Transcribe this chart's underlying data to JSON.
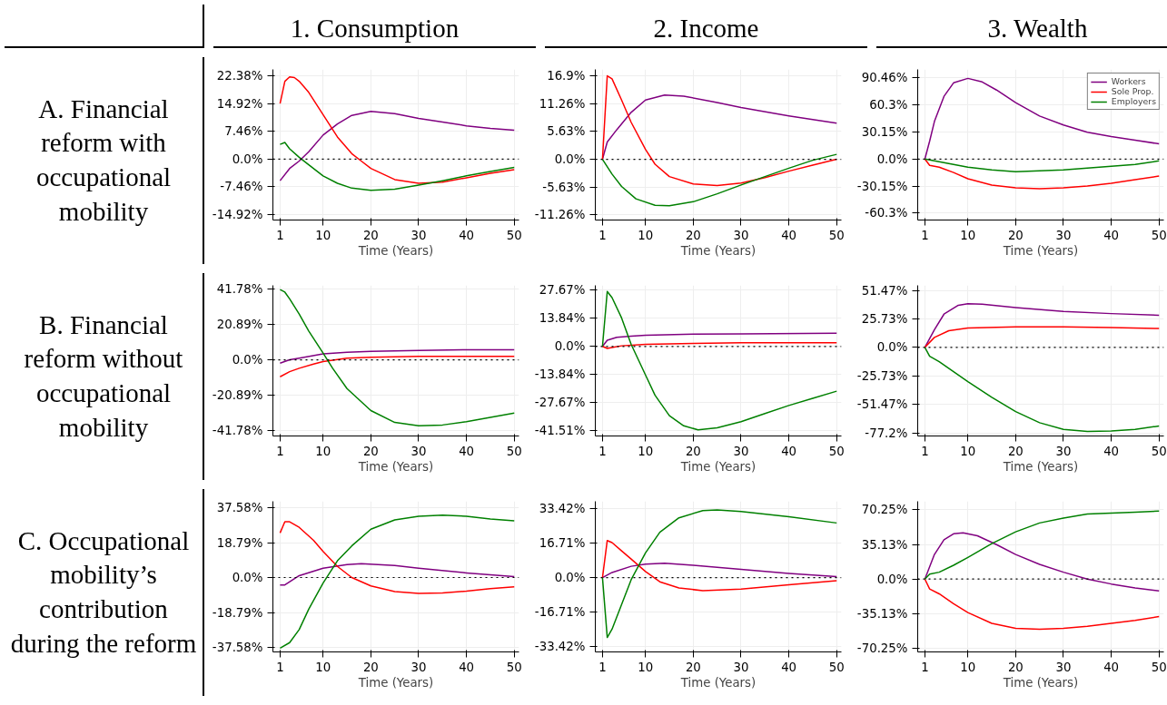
{
  "chart_data": [
    {
      "type": "line",
      "title": "1. Consumption",
      "ylabel": "A. Financial reform with occupational mobility",
      "xlabel": "Time (Years)",
      "xlim": [
        -0.5,
        51
      ],
      "xticks": [
        1,
        10,
        20,
        30,
        40,
        50
      ],
      "ylim": [
        -16.4,
        24.2
      ],
      "yticks": [
        {
          "value": -14.92,
          "label": "-14.92%"
        },
        {
          "value": -7.46,
          "label": "-7.46%"
        },
        {
          "value": 0,
          "label": "0.0%"
        },
        {
          "value": 7.46,
          "label": "7.46%"
        },
        {
          "value": 14.92,
          "label": "14.92%"
        },
        {
          "value": 22.38,
          "label": "22.38%"
        }
      ],
      "grid": true,
      "ref_lines": [
        {
          "axis": "y",
          "value": 0,
          "color": "#000000",
          "line_style": "dotted"
        }
      ],
      "series": [
        {
          "color": "#800080",
          "x": [
            1,
            3,
            5,
            7,
            10,
            13,
            16,
            20,
            25,
            30,
            35,
            40,
            45,
            50
          ],
          "values": [
            -5.8,
            -2.5,
            -0.5,
            2,
            6.5,
            9.5,
            11.8,
            12.9,
            12.3,
            11,
            10,
            9,
            8.3,
            7.8
          ]
        },
        {
          "color": "#ff0000",
          "x": [
            1,
            2,
            3,
            4,
            5,
            7,
            10,
            13,
            16,
            18,
            20,
            25,
            30,
            35,
            40,
            45,
            50
          ],
          "values": [
            15,
            21,
            22.2,
            22,
            21,
            18,
            12,
            6,
            1.5,
            -0.5,
            -2.5,
            -5.5,
            -6.5,
            -6.2,
            -5,
            -3.8,
            -2.8
          ]
        },
        {
          "color": "#008000",
          "x": [
            1,
            2,
            3,
            5,
            7,
            10,
            13,
            16,
            20,
            25,
            30,
            35,
            40,
            45,
            50
          ],
          "values": [
            4,
            4.5,
            2.8,
            0.5,
            -1.5,
            -4.5,
            -6.5,
            -7.8,
            -8.4,
            -8.1,
            -7,
            -5.8,
            -4.5,
            -3.3,
            -2.2
          ]
        }
      ]
    },
    {
      "type": "line",
      "title": "2. Income",
      "xlabel": "Time (Years)",
      "xlim": [
        -0.5,
        51
      ],
      "xticks": [
        1,
        10,
        20,
        30,
        40,
        50
      ],
      "ylim": [
        -12.3,
        18.2
      ],
      "yticks": [
        {
          "value": -11.26,
          "label": "-11.26%"
        },
        {
          "value": -5.63,
          "label": "-5.63%"
        },
        {
          "value": 0,
          "label": "0.0%"
        },
        {
          "value": 5.63,
          "label": "5.63%"
        },
        {
          "value": 11.26,
          "label": "11.26%"
        },
        {
          "value": 16.9,
          "label": "16.9%"
        }
      ],
      "grid": true,
      "ref_lines": [
        {
          "axis": "y",
          "value": 0,
          "color": "#000000",
          "line_style": "dotted"
        }
      ],
      "series": [
        {
          "color": "#800080",
          "x": [
            1,
            2,
            4,
            7,
            10,
            14,
            18,
            25,
            30,
            40,
            50
          ],
          "values": [
            0,
            3.5,
            6,
            9.5,
            12,
            13,
            12.8,
            11.5,
            10.5,
            8.8,
            7.3
          ]
        },
        {
          "color": "#ff0000",
          "x": [
            1,
            2,
            3,
            5,
            7,
            10,
            12,
            15,
            20,
            25,
            30,
            35,
            40,
            45,
            50
          ],
          "values": [
            0,
            16.9,
            16.3,
            12,
            7.5,
            2,
            -1,
            -3.5,
            -5,
            -5.3,
            -4.8,
            -3.7,
            -2.4,
            -1.2,
            0
          ]
        },
        {
          "color": "#008000",
          "x": [
            1,
            3,
            5,
            8,
            12,
            15,
            20,
            25,
            30,
            35,
            40,
            45,
            50
          ],
          "values": [
            0,
            -3,
            -5.5,
            -8,
            -9.3,
            -9.4,
            -8.6,
            -7,
            -5.2,
            -3.5,
            -1.8,
            -0.2,
            1
          ]
        }
      ]
    },
    {
      "type": "line",
      "title": "3. Wealth",
      "xlabel": "Time (Years)",
      "xlim": [
        -0.5,
        51
      ],
      "xticks": [
        1,
        10,
        20,
        30,
        40,
        50
      ],
      "ylim": [
        -68,
        100
      ],
      "yticks": [
        {
          "value": -60.3,
          "label": "-60.3%"
        },
        {
          "value": -30.15,
          "label": "-30.15%"
        },
        {
          "value": 0,
          "label": "0.0%"
        },
        {
          "value": 30.15,
          "label": "30.15%"
        },
        {
          "value": 60.3,
          "label": "60.3%"
        },
        {
          "value": 90.46,
          "label": "90.46%"
        }
      ],
      "grid": true,
      "legend": "top right",
      "ref_lines": [
        {
          "axis": "y",
          "value": 0,
          "color": "#000000",
          "line_style": "dotted"
        }
      ],
      "series": [
        {
          "name": "Workers",
          "color": "#800080",
          "x": [
            1,
            2,
            3,
            5,
            7,
            10,
            13,
            16,
            20,
            25,
            30,
            35,
            40,
            45,
            50
          ],
          "values": [
            0,
            20,
            42,
            70,
            85,
            90,
            86,
            77,
            63,
            48,
            38,
            30,
            25,
            21,
            17
          ]
        },
        {
          "name": "Sole Prop.",
          "color": "#ff0000",
          "x": [
            1,
            2,
            4,
            7,
            10,
            15,
            20,
            25,
            30,
            35,
            40,
            45,
            50
          ],
          "values": [
            0,
            -7,
            -9,
            -15,
            -22,
            -29,
            -32,
            -33,
            -32,
            -30,
            -27,
            -23,
            -19
          ]
        },
        {
          "name": "Employers",
          "color": "#008000",
          "x": [
            1,
            5,
            10,
            15,
            20,
            25,
            30,
            35,
            40,
            45,
            50
          ],
          "values": [
            0,
            -4,
            -9,
            -12,
            -14,
            -13,
            -12,
            -10,
            -8,
            -6,
            -2
          ]
        }
      ]
    },
    {
      "type": "line",
      "ylabel": "B. Financial reform without occupational mobility",
      "xlabel": "Time (Years)",
      "xlim": [
        -0.5,
        51
      ],
      "xticks": [
        1,
        10,
        20,
        30,
        40,
        50
      ],
      "ylim": [
        -45,
        44
      ],
      "yticks": [
        {
          "value": -41.78,
          "label": "-41.78%"
        },
        {
          "value": -20.89,
          "label": "-20.89%"
        },
        {
          "value": 0,
          "label": "0.0%"
        },
        {
          "value": 20.89,
          "label": "20.89%"
        },
        {
          "value": 41.78,
          "label": "41.78%"
        }
      ],
      "grid": true,
      "ref_lines": [
        {
          "axis": "y",
          "value": 0,
          "color": "#000000",
          "line_style": "dotted"
        }
      ],
      "series": [
        {
          "color": "#800080",
          "x": [
            1,
            3,
            5,
            10,
            15,
            20,
            30,
            40,
            50
          ],
          "values": [
            -2,
            0,
            1,
            3.5,
            4.5,
            5,
            5.5,
            6,
            6
          ]
        },
        {
          "color": "#ff0000",
          "x": [
            1,
            3,
            5,
            8,
            10,
            15,
            20,
            30,
            40,
            50
          ],
          "values": [
            -10,
            -7,
            -5,
            -2.5,
            -1,
            1,
            1.5,
            2,
            2,
            2
          ]
        },
        {
          "color": "#008000",
          "x": [
            1,
            2,
            3,
            5,
            7,
            10,
            12,
            15,
            20,
            25,
            30,
            35,
            40,
            45,
            50
          ],
          "values": [
            41.5,
            40,
            36,
            27,
            17,
            4,
            -5,
            -17,
            -30,
            -37,
            -39,
            -38.5,
            -36.5,
            -34,
            -31.5
          ]
        }
      ]
    },
    {
      "type": "line",
      "xlabel": "Time (Years)",
      "xlim": [
        -0.5,
        51
      ],
      "xticks": [
        1,
        10,
        20,
        30,
        40,
        50
      ],
      "ylim": [
        -44,
        30
      ],
      "yticks": [
        {
          "value": -41.51,
          "label": "-41.51%"
        },
        {
          "value": -27.67,
          "label": "-27.67%"
        },
        {
          "value": -13.84,
          "label": "-13.84%"
        },
        {
          "value": 0,
          "label": "0.0%"
        },
        {
          "value": 13.84,
          "label": "13.84%"
        },
        {
          "value": 27.67,
          "label": "27.67%"
        }
      ],
      "grid": true,
      "ref_lines": [
        {
          "axis": "y",
          "value": 0,
          "color": "#000000",
          "line_style": "dotted"
        }
      ],
      "series": [
        {
          "color": "#800080",
          "x": [
            1,
            2,
            4,
            7,
            10,
            20,
            30,
            50
          ],
          "values": [
            0,
            3,
            4.5,
            5,
            5.5,
            6,
            6.2,
            6.5
          ]
        },
        {
          "color": "#ff0000",
          "x": [
            1,
            2,
            3,
            5,
            10,
            20,
            30,
            50
          ],
          "values": [
            0,
            -1,
            -0.5,
            0.3,
            1,
            1.5,
            1.8,
            1.8
          ]
        },
        {
          "color": "#008000",
          "x": [
            1,
            2,
            3,
            5,
            7,
            10,
            12,
            15,
            18,
            21,
            25,
            30,
            35,
            40,
            45,
            50
          ],
          "values": [
            0,
            27,
            24,
            14,
            1,
            -14,
            -24,
            -34,
            -39,
            -41,
            -40,
            -37,
            -33,
            -29,
            -25.5,
            -22
          ]
        }
      ]
    },
    {
      "type": "line",
      "xlabel": "Time (Years)",
      "xlim": [
        -0.5,
        51
      ],
      "xticks": [
        1,
        10,
        20,
        30,
        40,
        50
      ],
      "ylim": [
        -80,
        56
      ],
      "yticks": [
        {
          "value": -77.2,
          "label": "-77.2%"
        },
        {
          "value": -51.47,
          "label": "-51.47%"
        },
        {
          "value": -25.73,
          "label": "-25.73%"
        },
        {
          "value": 0,
          "label": "0.0%"
        },
        {
          "value": 25.73,
          "label": "25.73%"
        },
        {
          "value": 51.47,
          "label": "51.47%"
        }
      ],
      "grid": true,
      "ref_lines": [
        {
          "axis": "y",
          "value": 0,
          "color": "#000000",
          "line_style": "dotted"
        }
      ],
      "series": [
        {
          "color": "#800080",
          "x": [
            1,
            3,
            5,
            8,
            10,
            13,
            20,
            30,
            40,
            50
          ],
          "values": [
            0,
            16,
            30,
            38,
            39.5,
            39,
            36,
            32.5,
            30.5,
            29
          ]
        },
        {
          "color": "#ff0000",
          "x": [
            1,
            3,
            6,
            10,
            20,
            30,
            40,
            50
          ],
          "values": [
            0,
            9,
            15,
            17.5,
            18.5,
            18.5,
            18,
            17
          ]
        },
        {
          "color": "#008000",
          "x": [
            1,
            2,
            4,
            7,
            10,
            15,
            20,
            25,
            30,
            35,
            40,
            45,
            50
          ],
          "values": [
            0,
            -8,
            -13,
            -22,
            -31,
            -45,
            -58,
            -68,
            -74,
            -76,
            -75.5,
            -74,
            -71
          ]
        }
      ]
    },
    {
      "type": "line",
      "ylabel": "C. Occupational mobility’s contribution during the reform",
      "xlabel": "Time (Years)",
      "xlim": [
        -0.5,
        51
      ],
      "xticks": [
        1,
        10,
        20,
        30,
        40,
        50
      ],
      "ylim": [
        -40,
        41
      ],
      "yticks": [
        {
          "value": -37.58,
          "label": "-37.58%"
        },
        {
          "value": -18.79,
          "label": "-18.79%"
        },
        {
          "value": 0,
          "label": "0.0%"
        },
        {
          "value": 18.79,
          "label": "18.79%"
        },
        {
          "value": 37.58,
          "label": "37.58%"
        }
      ],
      "grid": true,
      "ref_lines": [
        {
          "axis": "y",
          "value": 0,
          "color": "#000000",
          "line_style": "dotted"
        }
      ],
      "series": [
        {
          "color": "#800080",
          "x": [
            1,
            2,
            5,
            10,
            15,
            18,
            25,
            30,
            40,
            50
          ],
          "values": [
            -4,
            -4,
            1,
            5,
            7,
            7.5,
            6.5,
            5,
            2.5,
            0.5
          ]
        },
        {
          "color": "#ff0000",
          "x": [
            1,
            2,
            3,
            5,
            8,
            10,
            13,
            16,
            20,
            25,
            30,
            35,
            40,
            45,
            50
          ],
          "values": [
            24,
            30,
            30,
            27,
            20,
            14,
            6,
            0,
            -4.5,
            -7.5,
            -8.5,
            -8.3,
            -7.3,
            -6,
            -5
          ]
        },
        {
          "color": "#008000",
          "x": [
            1,
            3,
            5,
            7,
            10,
            13,
            16,
            20,
            25,
            30,
            35,
            40,
            45,
            50
          ],
          "values": [
            -38,
            -35,
            -28,
            -17,
            -3,
            9,
            17,
            26,
            31,
            33,
            33.5,
            33,
            31.5,
            30.5
          ]
        }
      ]
    },
    {
      "type": "line",
      "xlabel": "Time (Years)",
      "xlim": [
        -0.5,
        51
      ],
      "xticks": [
        1,
        10,
        20,
        30,
        40,
        50
      ],
      "ylim": [
        -36,
        37
      ],
      "yticks": [
        {
          "value": -33.42,
          "label": "-33.42%"
        },
        {
          "value": -16.71,
          "label": "-16.71%"
        },
        {
          "value": 0,
          "label": "0.0%"
        },
        {
          "value": 16.71,
          "label": "16.71%"
        },
        {
          "value": 33.42,
          "label": "33.42%"
        }
      ],
      "grid": true,
      "ref_lines": [
        {
          "axis": "y",
          "value": 0,
          "color": "#000000",
          "line_style": "dotted"
        }
      ],
      "series": [
        {
          "color": "#800080",
          "x": [
            1,
            3,
            7,
            10,
            14,
            20,
            30,
            40,
            50
          ],
          "values": [
            0,
            2.5,
            5.5,
            6.5,
            7,
            6,
            4,
            2,
            0.5
          ]
        },
        {
          "color": "#ff0000",
          "x": [
            1,
            2,
            3,
            5,
            7,
            10,
            13,
            17,
            22,
            30,
            40,
            50
          ],
          "values": [
            0,
            18,
            17,
            13,
            9,
            3,
            -2,
            -5,
            -6.3,
            -5.5,
            -3.5,
            -1.5
          ]
        },
        {
          "color": "#008000",
          "x": [
            1,
            2,
            3,
            5,
            7,
            10,
            13,
            17,
            22,
            25,
            30,
            40,
            50
          ],
          "values": [
            0,
            -29,
            -25,
            -13,
            -1,
            12,
            22,
            29,
            32.5,
            32.8,
            32,
            29.5,
            26.5
          ]
        }
      ]
    },
    {
      "type": "line",
      "xlabel": "Time (Years)",
      "xlim": [
        -0.5,
        51
      ],
      "xticks": [
        1,
        10,
        20,
        30,
        40,
        50
      ],
      "ylim": [
        -74,
        79
      ],
      "yticks": [
        {
          "value": -70.25,
          "label": "-70.25%"
        },
        {
          "value": -35.13,
          "label": "-35.13%"
        },
        {
          "value": 0,
          "label": "0.0%"
        },
        {
          "value": 35.13,
          "label": "35.13%"
        },
        {
          "value": 70.25,
          "label": "70.25%"
        }
      ],
      "grid": true,
      "ref_lines": [
        {
          "axis": "y",
          "value": 0,
          "color": "#000000",
          "line_style": "dotted"
        }
      ],
      "series": [
        {
          "color": "#800080",
          "x": [
            1,
            3,
            5,
            7,
            9,
            12,
            16,
            20,
            25,
            30,
            35,
            40,
            45,
            50
          ],
          "values": [
            0,
            25,
            40,
            46,
            47,
            44,
            35,
            25,
            15,
            7,
            0,
            -5,
            -9,
            -12
          ]
        },
        {
          "color": "#ff0000",
          "x": [
            1,
            2,
            4,
            7,
            10,
            15,
            20,
            25,
            30,
            35,
            40,
            45,
            50
          ],
          "values": [
            0,
            -10,
            -15,
            -25,
            -34,
            -45,
            -50,
            -51,
            -50,
            -48,
            -45,
            -42,
            -38
          ]
        },
        {
          "color": "#008000",
          "x": [
            1,
            2,
            4,
            7,
            10,
            15,
            20,
            25,
            30,
            35,
            40,
            45,
            50
          ],
          "values": [
            0,
            5,
            7,
            14,
            22,
            36,
            48,
            57,
            62,
            66,
            67,
            68,
            69
          ]
        }
      ]
    }
  ]
}
